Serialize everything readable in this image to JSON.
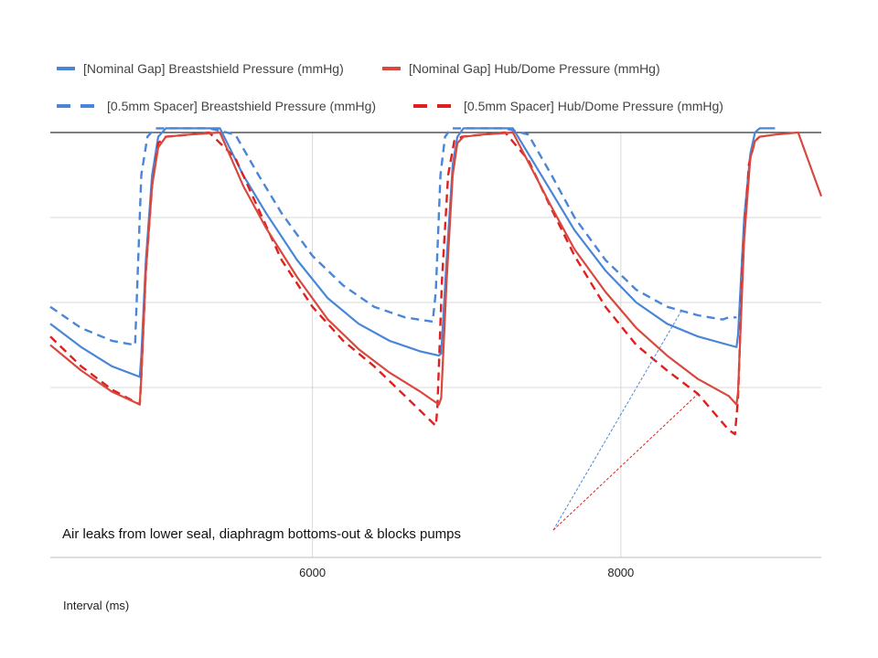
{
  "chart_data": {
    "type": "line",
    "title": "",
    "xlabel": "Interval (ms)",
    "ylabel": "",
    "xlim": [
      4300,
      9300
    ],
    "ylim": [
      -80,
      120
    ],
    "grid": true,
    "legend_position": "top",
    "x_ticks": [
      6000,
      8000
    ],
    "x_tick_labels": [
      "6000",
      "8000"
    ],
    "y_gridlines": [
      0,
      40,
      80
    ],
    "reference_line_y": 120,
    "series": [
      {
        "name": "[Nominal Gap] Breastshield Pressure (mmHg)",
        "color": "#4a86d8",
        "dash": "solid",
        "points": [
          [
            4300,
            30
          ],
          [
            4500,
            19
          ],
          [
            4700,
            10
          ],
          [
            4880,
            5
          ],
          [
            4890,
            15
          ],
          [
            4920,
            60
          ],
          [
            4960,
            100
          ],
          [
            5000,
            118
          ],
          [
            5050,
            122
          ],
          [
            5200,
            122
          ],
          [
            5400,
            122
          ],
          [
            5550,
            100
          ],
          [
            5700,
            82
          ],
          [
            5900,
            60
          ],
          [
            6100,
            42
          ],
          [
            6300,
            30
          ],
          [
            6500,
            22
          ],
          [
            6700,
            17
          ],
          [
            6820,
            15
          ],
          [
            6835,
            16
          ],
          [
            6870,
            60
          ],
          [
            6910,
            105
          ],
          [
            6940,
            118
          ],
          [
            6980,
            122
          ],
          [
            7100,
            122
          ],
          [
            7300,
            122
          ],
          [
            7400,
            110
          ],
          [
            7550,
            92
          ],
          [
            7700,
            74
          ],
          [
            7900,
            55
          ],
          [
            8100,
            40
          ],
          [
            8300,
            30
          ],
          [
            8500,
            24
          ],
          [
            8700,
            20
          ],
          [
            8750,
            19
          ],
          [
            8760,
            25
          ],
          [
            8800,
            80
          ],
          [
            8840,
            110
          ],
          [
            8870,
            120
          ],
          [
            8900,
            122
          ],
          [
            9000,
            122
          ]
        ]
      },
      {
        "name": "[Nominal Gap] Hub/Dome Pressure (mmHg)",
        "color": "#d7493e",
        "dash": "solid",
        "points": [
          [
            4300,
            20
          ],
          [
            4500,
            8
          ],
          [
            4700,
            -2
          ],
          [
            4880,
            -8
          ],
          [
            4890,
            5
          ],
          [
            4920,
            55
          ],
          [
            4960,
            95
          ],
          [
            5000,
            113
          ],
          [
            5050,
            118
          ],
          [
            5200,
            119
          ],
          [
            5400,
            120
          ],
          [
            5550,
            95
          ],
          [
            5700,
            75
          ],
          [
            5900,
            52
          ],
          [
            6100,
            32
          ],
          [
            6300,
            18
          ],
          [
            6500,
            7
          ],
          [
            6700,
            -2
          ],
          [
            6820,
            -8
          ],
          [
            6835,
            -5
          ],
          [
            6870,
            50
          ],
          [
            6910,
            100
          ],
          [
            6940,
            115
          ],
          [
            6980,
            118
          ],
          [
            7100,
            119
          ],
          [
            7300,
            120
          ],
          [
            7400,
            106
          ],
          [
            7550,
            85
          ],
          [
            7700,
            65
          ],
          [
            7900,
            45
          ],
          [
            8100,
            28
          ],
          [
            8300,
            15
          ],
          [
            8500,
            4
          ],
          [
            8700,
            -4
          ],
          [
            8750,
            -8
          ],
          [
            8760,
            -2
          ],
          [
            8800,
            70
          ],
          [
            8840,
            108
          ],
          [
            8870,
            116
          ],
          [
            8900,
            118
          ],
          [
            9000,
            119
          ],
          [
            9150,
            120
          ],
          [
            9200,
            110
          ],
          [
            9300,
            90
          ]
        ]
      },
      {
        "name": "[0.5mm Spacer] Breastshield Pressure (mmHg)",
        "color": "#4a86d8",
        "dash": "dashed",
        "points": [
          [
            4300,
            38
          ],
          [
            4500,
            28
          ],
          [
            4700,
            22
          ],
          [
            4850,
            20
          ],
          [
            4860,
            40
          ],
          [
            4890,
            100
          ],
          [
            4930,
            118
          ],
          [
            4980,
            122
          ],
          [
            5200,
            122
          ],
          [
            5330,
            122
          ],
          [
            5500,
            119
          ],
          [
            5650,
            100
          ],
          [
            5800,
            82
          ],
          [
            6000,
            62
          ],
          [
            6200,
            48
          ],
          [
            6400,
            38
          ],
          [
            6600,
            33
          ],
          [
            6780,
            31
          ],
          [
            6800,
            45
          ],
          [
            6830,
            100
          ],
          [
            6860,
            118
          ],
          [
            6900,
            122
          ],
          [
            7100,
            122
          ],
          [
            7250,
            122
          ],
          [
            7400,
            119
          ],
          [
            7550,
            100
          ],
          [
            7700,
            80
          ],
          [
            7900,
            60
          ],
          [
            8100,
            46
          ],
          [
            8300,
            38
          ],
          [
            8500,
            34
          ],
          [
            8660,
            32
          ],
          [
            8700,
            33
          ],
          [
            8750,
            33
          ]
        ]
      },
      {
        "name": "[0.5mm Spacer] Hub/Dome Pressure (mmHg)",
        "color": "#e01f1f",
        "dash": "dashed",
        "points": [
          [
            4300,
            24
          ],
          [
            4500,
            10
          ],
          [
            4700,
            -1
          ],
          [
            4880,
            -8
          ],
          [
            4890,
            5
          ],
          [
            4920,
            55
          ],
          [
            4960,
            95
          ],
          [
            5000,
            115
          ],
          [
            5050,
            118
          ],
          [
            5200,
            119
          ],
          [
            5330,
            120
          ],
          [
            5500,
            108
          ],
          [
            5650,
            84
          ],
          [
            5800,
            60
          ],
          [
            6000,
            38
          ],
          [
            6200,
            22
          ],
          [
            6400,
            10
          ],
          [
            6600,
            -4
          ],
          [
            6800,
            -18
          ],
          [
            6810,
            -10
          ],
          [
            6840,
            50
          ],
          [
            6880,
            100
          ],
          [
            6920,
            116
          ],
          [
            6970,
            118
          ],
          [
            7100,
            119
          ],
          [
            7250,
            120
          ],
          [
            7400,
            107
          ],
          [
            7550,
            84
          ],
          [
            7700,
            62
          ],
          [
            7900,
            38
          ],
          [
            8100,
            20
          ],
          [
            8300,
            8
          ],
          [
            8500,
            -3
          ],
          [
            8700,
            -20
          ],
          [
            8740,
            -22
          ],
          [
            8760,
            -5
          ],
          [
            8790,
            60
          ],
          [
            8830,
            105
          ],
          [
            8870,
            116
          ],
          [
            8900,
            118
          ]
        ]
      }
    ],
    "annotation": {
      "text": "Air leaks from lower seal, diaphragm bottoms-out & blocks pumps",
      "targets": [
        {
          "x": 8400,
          "y": 37,
          "color": "#4a86d8"
        },
        {
          "x": 8500,
          "y": -3,
          "color": "#e01f1f"
        }
      ]
    }
  }
}
